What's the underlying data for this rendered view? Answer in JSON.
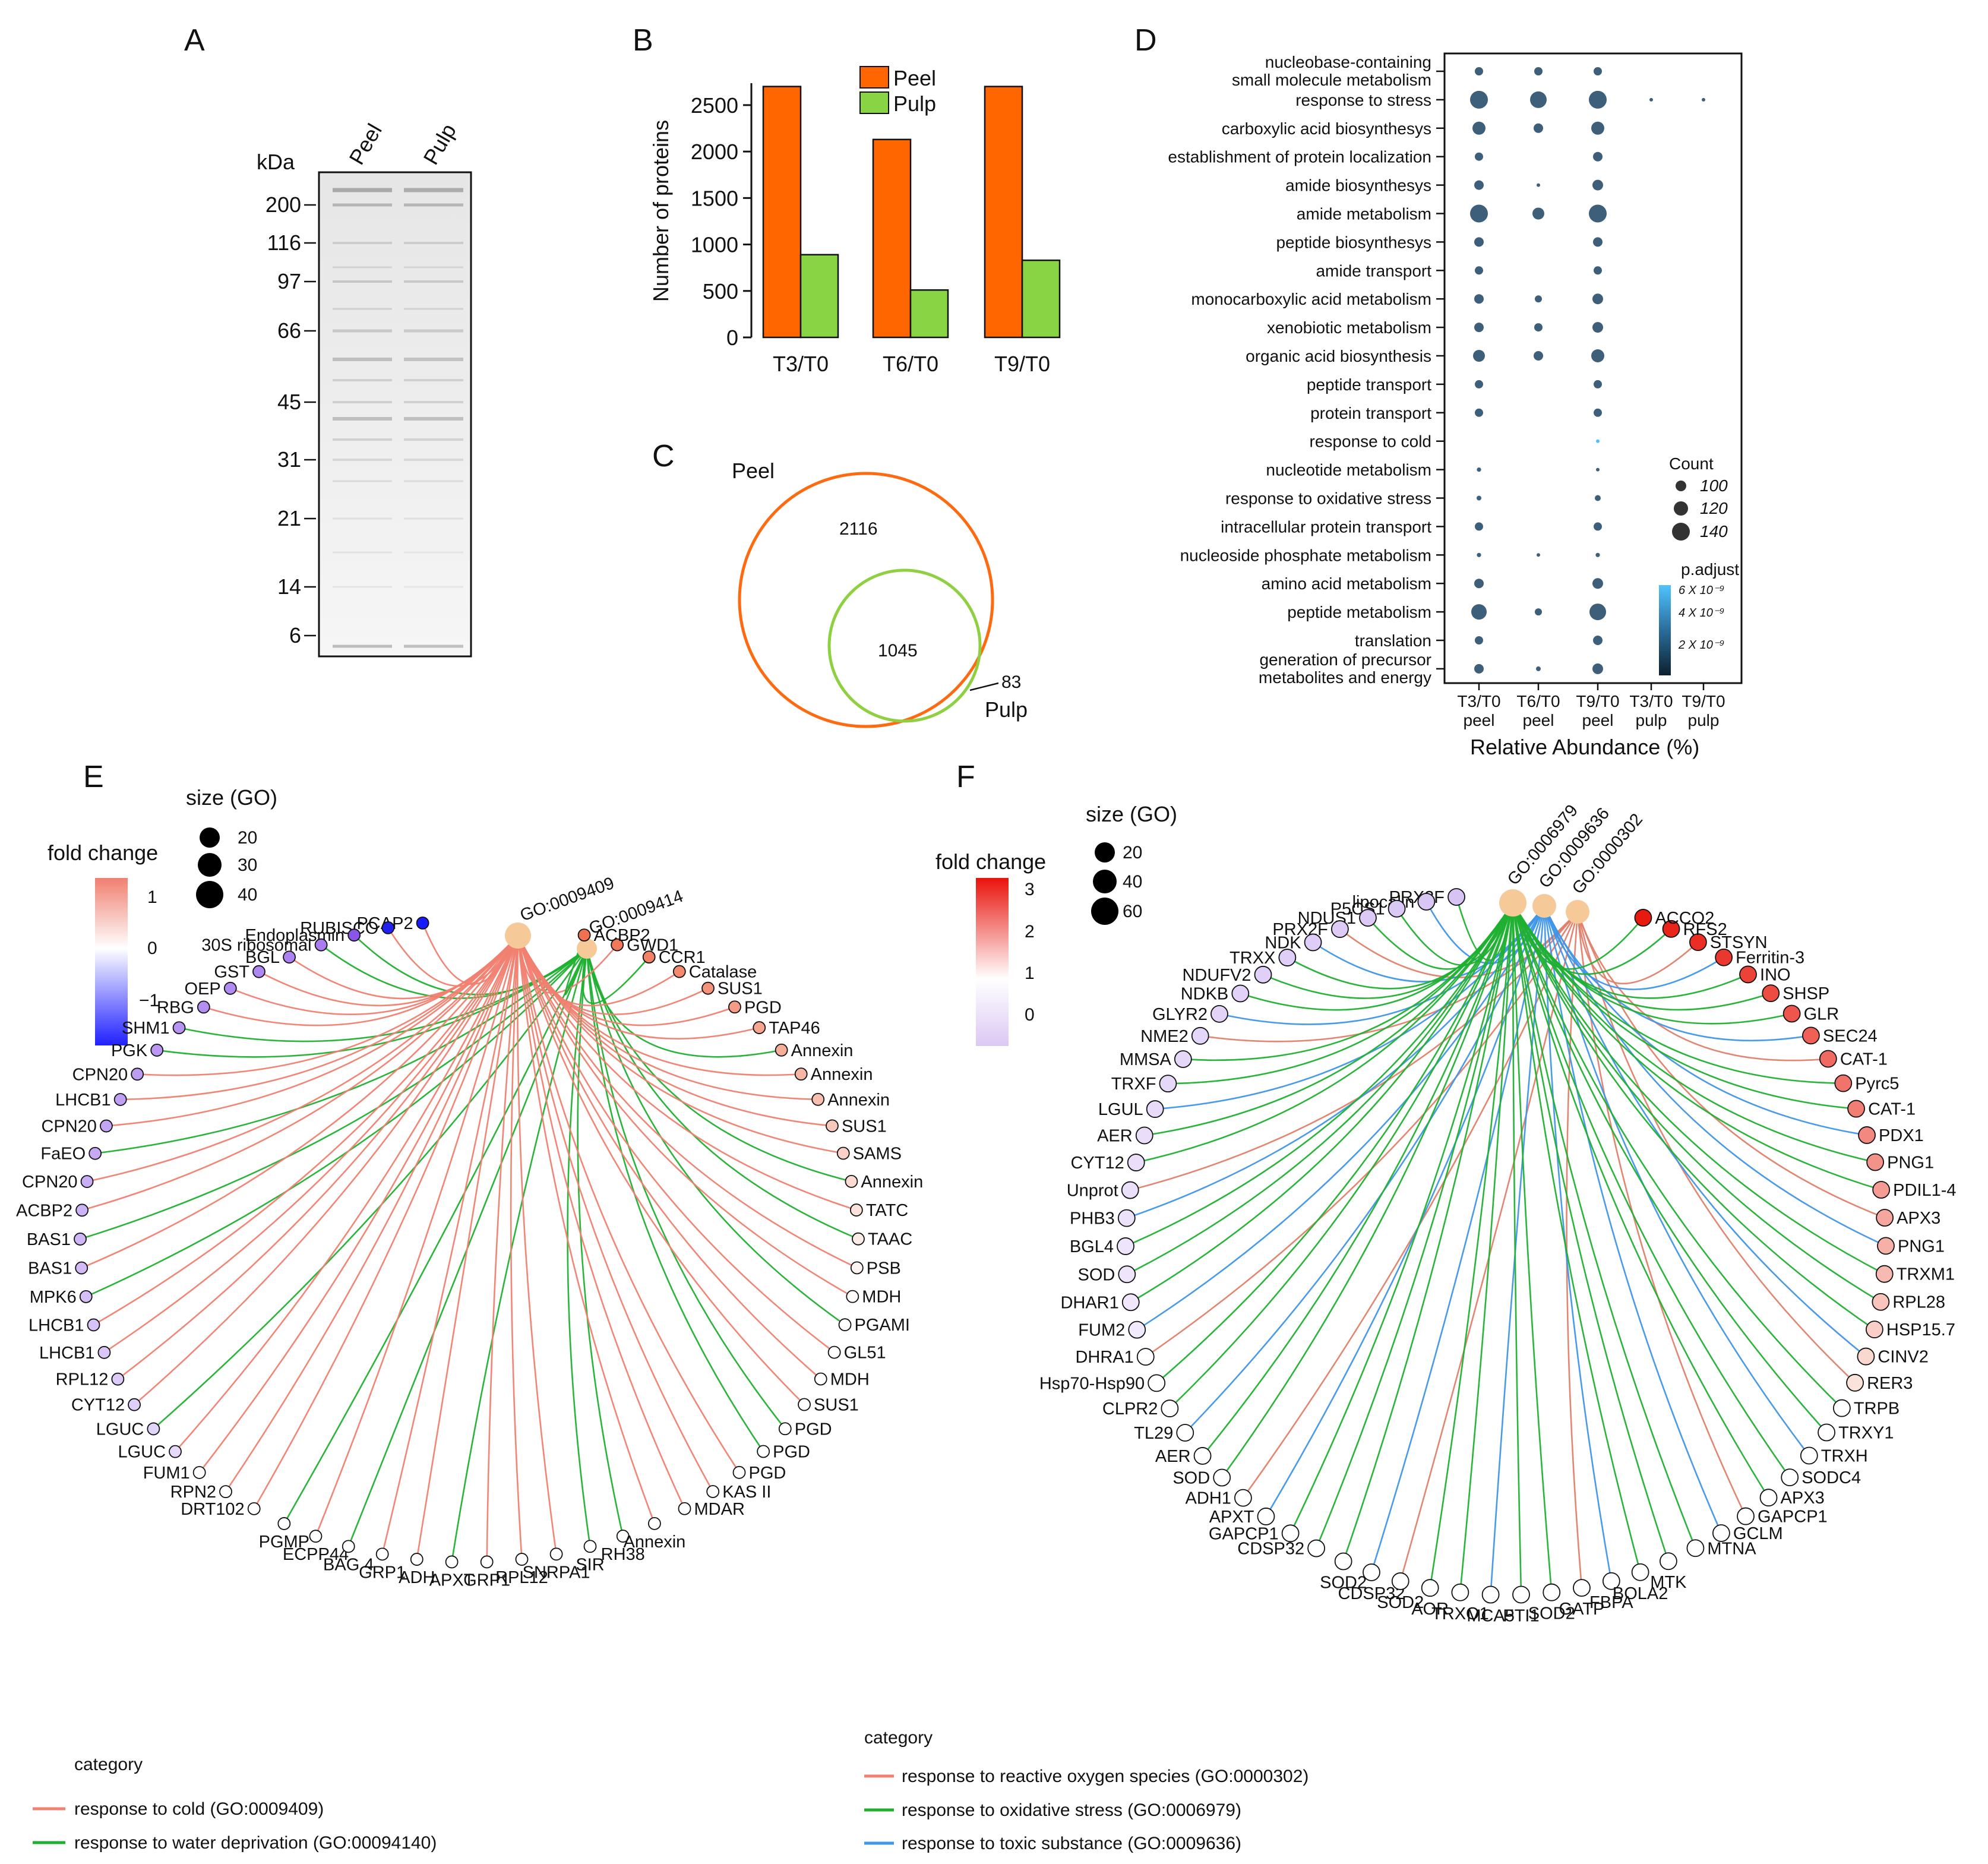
{
  "panels": {
    "A": {
      "letter": "A",
      "unit": "kDa",
      "lanes": [
        "Peel",
        "Pulp"
      ],
      "markers": [
        "200",
        "116",
        "97",
        "66",
        "45",
        "31",
        "21",
        "14",
        "6"
      ]
    },
    "C": {
      "letter": "C",
      "peel_label": "Peel",
      "pulp_label": "Pulp",
      "peel_only": "2116",
      "shared": "1045",
      "pulp_only": "83"
    },
    "D": {
      "letter": "D",
      "xlabel": "Relative Abundance (%)",
      "count_legend_title": "Count",
      "count_legend_values": [
        "100",
        "120",
        "140"
      ],
      "padj_legend_title": "p.adjust",
      "padj_legend_values": [
        "6 X 10⁻⁹",
        "4 X 10⁻⁹",
        "2 X 10⁻⁹"
      ]
    },
    "E": {
      "letter": "E",
      "size_title": "size (GO)",
      "size_values": [
        "20",
        "30",
        "40"
      ],
      "fc_title": "fold change",
      "fc_ticks": [
        "1",
        "0",
        "−1"
      ],
      "hubs": [
        "GO:0009409",
        "GO:0009414"
      ],
      "category_title": "category",
      "categories": [
        {
          "label": "response to cold (GO:0009409)",
          "color": "#f08070"
        },
        {
          "label": "response to water deprivation (GO:00094140)",
          "color": "#1fb030"
        }
      ],
      "nodes": [
        "PCAP2",
        "RUBISCO",
        "Endoplasmin",
        "30S ribosomal",
        "BGL",
        "GST",
        "OEP",
        "RBG",
        "SHM1",
        "PGK",
        "CPN20",
        "LHCB1",
        "CPN20",
        "FaEO",
        "CPN20",
        "ACBP2",
        "BAS1",
        "BAS1",
        "MPK6",
        "LHCB1",
        "LHCB1",
        "RPL12",
        "CYT12",
        "LGUC",
        "LGUC",
        "FUM1",
        "RPN2",
        "DRT102",
        "PGMP",
        "ECPP44",
        "BAG 4",
        "GRP1",
        "ADH",
        "APXT",
        "GRP1",
        "RPL12",
        "SNRPA1",
        "SIR",
        "RH38",
        "Annexin",
        "MDAR",
        "KAS II",
        "PGD",
        "PGD",
        "PGD",
        "SUS1",
        "MDH",
        "GL51",
        "PGAMI",
        "MDH",
        "PSB",
        "TAAC",
        "TATC",
        "Annexin",
        "SAMS",
        "SUS1",
        "Annexin",
        "Annexin",
        "Annexin",
        "TAP46",
        "PGD",
        "SUS1",
        "Catalase",
        "CCR1",
        "GWD1",
        "ACBP2"
      ]
    },
    "F": {
      "letter": "F",
      "size_title": "size (GO)",
      "size_values": [
        "20",
        "40",
        "60"
      ],
      "fc_title": "fold change",
      "fc_ticks": [
        "3",
        "2",
        "1",
        "0"
      ],
      "hubs": [
        "GO:0006979",
        "GO:0009636",
        "GO:0000302"
      ],
      "category_title": "category",
      "categories": [
        {
          "label": "response to reactive oxygen species (GO:0000302)",
          "color": "#f08070"
        },
        {
          "label": "response to oxidative stress (GO:0006979)",
          "color": "#1fb030"
        },
        {
          "label": "response to toxic substance (GO:0009636)",
          "color": "#3f95e8"
        }
      ],
      "nodes": [
        "PRX2F",
        "lipocalin",
        "P5CS1",
        "NDUS1",
        "PRX2F",
        "NDK",
        "TRXX",
        "NDUFV2",
        "NDKB",
        "GLYR2",
        "NME2",
        "MMSA",
        "TRXF",
        "LGUL",
        "AER",
        "CYT12",
        "Unprot",
        "PHB3",
        "BGL4",
        "SOD",
        "DHAR1",
        "FUM2",
        "DHRA1",
        "Hsp70-Hsp90",
        "CLPR2",
        "TL29",
        "AER",
        "SOD",
        "ADH1",
        "APXT",
        "GAPCP1",
        "CDSP32",
        "SOD2",
        "CDSP32",
        "SOD2",
        "AOR",
        "TRXO1",
        "MCA5",
        "PTI1",
        "SOD2",
        "GATP",
        "FBPA",
        "BOLA2",
        "MTK",
        "MTNA",
        "GCLM",
        "GAPCP1",
        "APX3",
        "SODC4",
        "TRXH",
        "TRXY1",
        "TRPB",
        "RER3",
        "CINV2",
        "HSP15.7",
        "RPL28",
        "TRXM1",
        "PNG1",
        "APX3",
        "PDIL1-4",
        "PNG1",
        "PDX1",
        "CAT-1",
        "Pyrc5",
        "CAT-1",
        "SEC24",
        "GLR",
        "SHSP",
        "INO",
        "Ferritin-3",
        "STSYN",
        "RFS2",
        "ACCO2"
      ]
    }
  },
  "chart_data": [
    {
      "panel": "B",
      "type": "bar",
      "title": "B",
      "categories": [
        "T3/T0",
        "T6/T0",
        "T9/T0"
      ],
      "series": [
        {
          "name": "Peel",
          "values": [
            2700,
            2130,
            2700
          ],
          "color": "#ff6600"
        },
        {
          "name": "Pulp",
          "values": [
            890,
            510,
            830
          ],
          "color": "#88d444"
        }
      ],
      "xlabel": "",
      "ylabel": "Number of proteins",
      "ylim": [
        0,
        2800
      ],
      "yticks": [
        0,
        500,
        1000,
        1500,
        2000,
        2500
      ]
    },
    {
      "panel": "D",
      "type": "scatter",
      "title": "D",
      "xlabel": "Relative Abundance (%)",
      "x_categories": [
        "T3/T0 peel",
        "T6/T0 peel",
        "T9/T0 peel",
        "T3/T0 pulp",
        "T9/T0 pulp"
      ],
      "y_categories": [
        "nucleobase-containing small molecule metabolism",
        "response to stress",
        "carboxylic acid biosynthesys",
        "establishment of protein localization",
        "amide biosynthesys",
        "amide metabolism",
        "peptide biosynthesys",
        "amide transport",
        "monocarboxylic acid metabolism",
        "xenobiotic metabolism",
        "organic acid biosynthesis",
        "peptide transport",
        "protein transport",
        "response to cold",
        "nucleotide metabolism",
        "response to oxidative stress",
        "intracellular protein transport",
        "nucleoside phosphate metabolism",
        "amino acid metabolism",
        "peptide metabolism",
        "translation",
        "generation of precursor metabolites and energy"
      ],
      "counts": [
        [
          105,
          105,
          105,
          null,
          null
        ],
        [
          145,
          140,
          145,
          85,
          80
        ],
        [
          125,
          110,
          125,
          null,
          null
        ],
        [
          105,
          null,
          110,
          null,
          null
        ],
        [
          110,
          85,
          115,
          null,
          null
        ],
        [
          145,
          120,
          145,
          null,
          null
        ],
        [
          110,
          null,
          110,
          null,
          null
        ],
        [
          105,
          null,
          105,
          null,
          null
        ],
        [
          110,
          100,
          115,
          null,
          null
        ],
        [
          110,
          105,
          115,
          null,
          null
        ],
        [
          120,
          110,
          125,
          null,
          null
        ],
        [
          105,
          null,
          105,
          null,
          null
        ],
        [
          105,
          null,
          105,
          null,
          null
        ],
        [
          null,
          null,
          85,
          null,
          null
        ],
        [
          88,
          null,
          80,
          null,
          null
        ],
        [
          90,
          null,
          95,
          null,
          null
        ],
        [
          105,
          null,
          105,
          null,
          null
        ],
        [
          88,
          78,
          88,
          null,
          null
        ],
        [
          110,
          null,
          115,
          null,
          null
        ],
        [
          135,
          100,
          140,
          null,
          null
        ],
        [
          105,
          null,
          110,
          null,
          null
        ],
        [
          110,
          90,
          115,
          null,
          null
        ]
      ],
      "count_scale": [
        100,
        120,
        140
      ],
      "padj_scale": [
        "2 X 10⁻⁹",
        "4 X 10⁻⁹",
        "6 X 10⁻⁹"
      ]
    }
  ]
}
